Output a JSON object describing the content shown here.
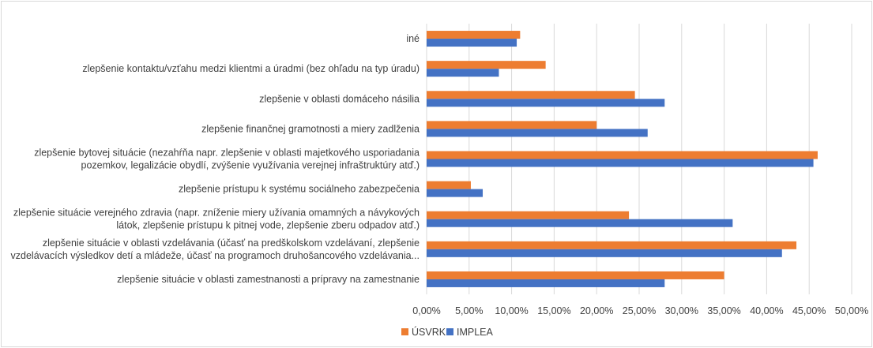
{
  "chart_data": {
    "type": "bar",
    "orientation": "horizontal",
    "categories": [
      [
        "iné"
      ],
      [
        "zlepšenie kontaktu/vzťahu medzi klientmi a úradmi (bez ohľadu na typ úradu)"
      ],
      [
        "zlepšenie v oblasti domáceho násilia"
      ],
      [
        "zlepšenie finančnej gramotnosti a miery zadlženia"
      ],
      [
        "zlepšenie bytovej situácie (nezahŕňa napr. zlepšenie v oblasti majetkového usporiadania",
        "pozemkov, legalizácie obydlí, zvýšenie využívania verejnej infraštruktúry atď.)"
      ],
      [
        "zlepšenie prístupu k systému sociálneho zabezpečenia"
      ],
      [
        "zlepšenie situácie verejného zdravia (napr. zníženie miery užívania omamných a návykových",
        "látok, zlepšenie prístupu k pitnej vode, zlepšenie zberu odpadov atď.)"
      ],
      [
        "zlepšenie situácie v oblasti vzdelávania (účasť na predškolskom vzdelávaní, zlepšenie",
        "vzdelávacích výsledkov detí a mládeže, účasť na programoch druhošancového vzdelávania..."
      ],
      [
        "zlepšenie situácie v oblasti zamestnanosti a prípravy na zamestnanie"
      ]
    ],
    "series": [
      {
        "name": "ÚSVRK",
        "color": "#ED7D31",
        "values": [
          11.0,
          14.0,
          24.5,
          20.0,
          46.0,
          5.2,
          23.8,
          43.5,
          35.0
        ]
      },
      {
        "name": "IMPLEA",
        "color": "#4472C4",
        "values": [
          10.6,
          8.5,
          28.0,
          26.0,
          45.5,
          6.6,
          36.0,
          41.8,
          28.0
        ]
      }
    ],
    "xlim": [
      0,
      50
    ],
    "x_ticks": [
      "0,00%",
      "5,00%",
      "10,00%",
      "15,00%",
      "20,00%",
      "25,00%",
      "30,00%",
      "35,00%",
      "40,00%",
      "45,00%",
      "50,00%"
    ],
    "grid": true,
    "legend_position": "bottom-left"
  }
}
